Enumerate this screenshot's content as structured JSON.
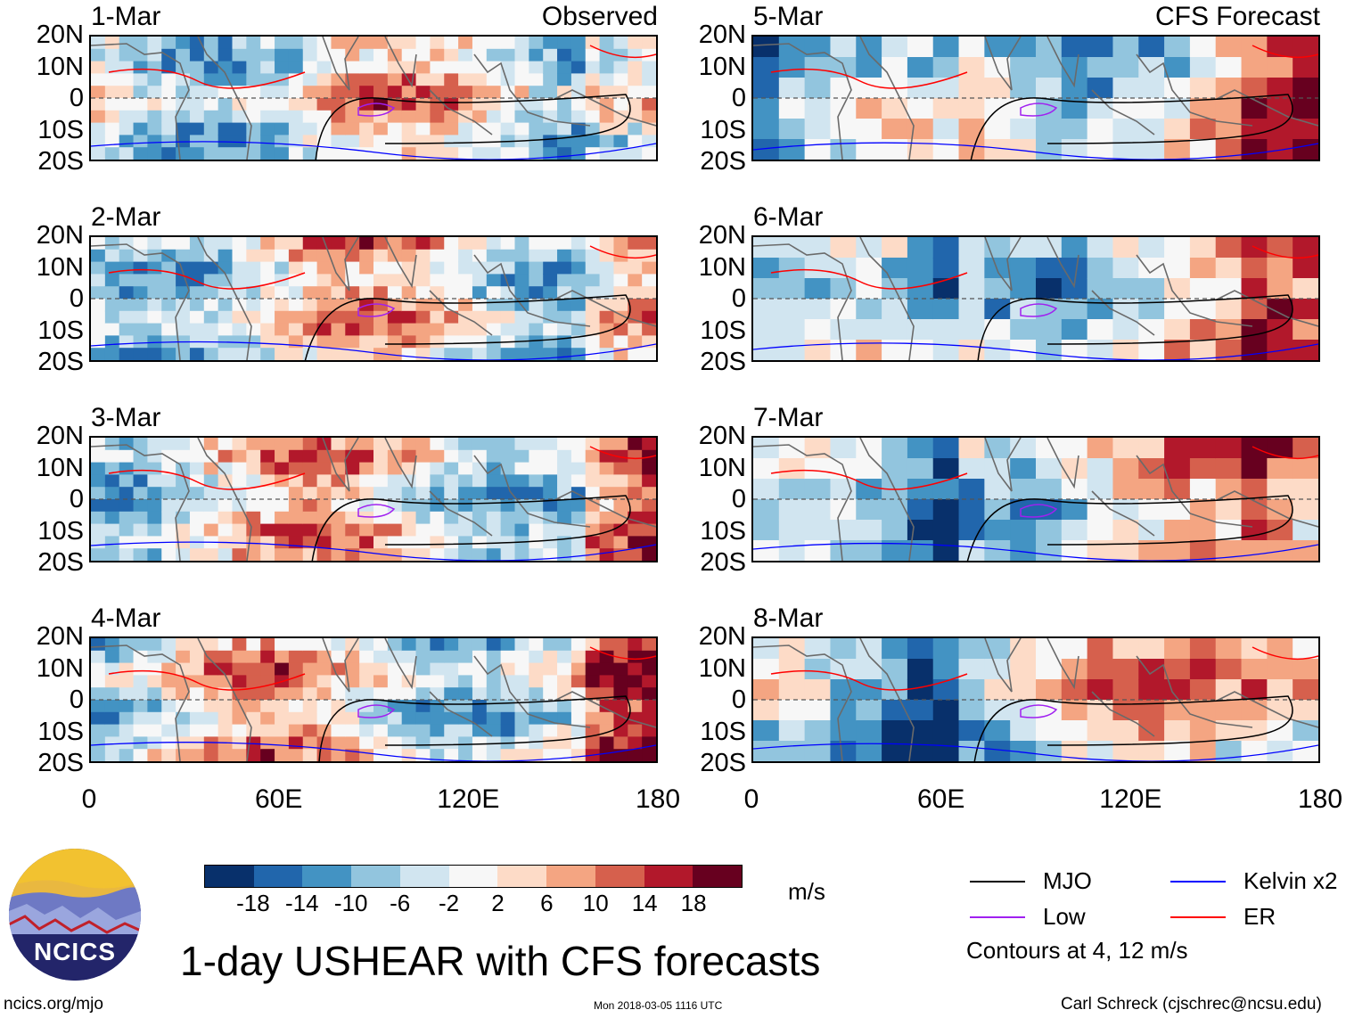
{
  "panels": [
    {
      "date": "1-Mar",
      "tag": "Observed",
      "side": "left",
      "row": 0
    },
    {
      "date": "2-Mar",
      "tag": "",
      "side": "left",
      "row": 1
    },
    {
      "date": "3-Mar",
      "tag": "",
      "side": "left",
      "row": 2
    },
    {
      "date": "4-Mar",
      "tag": "",
      "side": "left",
      "row": 3
    },
    {
      "date": "5-Mar",
      "tag": "CFS Forecast",
      "side": "right",
      "row": 0
    },
    {
      "date": "6-Mar",
      "tag": "",
      "side": "right",
      "row": 1
    },
    {
      "date": "7-Mar",
      "tag": "",
      "side": "right",
      "row": 2
    },
    {
      "date": "8-Mar",
      "tag": "",
      "side": "right",
      "row": 3
    }
  ],
  "y_labels": [
    "20N",
    "10N",
    "0",
    "10S",
    "20S"
  ],
  "x_labels": [
    "0",
    "60E",
    "120E",
    "180"
  ],
  "colorbar": {
    "colors": [
      "#08306b",
      "#2166ac",
      "#4393c3",
      "#92c5de",
      "#d1e5f0",
      "#f7f7f7",
      "#fddbc7",
      "#f4a582",
      "#d6604d",
      "#b2182b",
      "#67001f"
    ],
    "ticks": [
      "-18",
      "-14",
      "-10",
      "-6",
      "-2",
      "2",
      "6",
      "10",
      "14",
      "18"
    ],
    "units": "m/s"
  },
  "legend": {
    "items": [
      {
        "label": "MJO",
        "color": "#000000"
      },
      {
        "label": "Kelvin x2",
        "color": "#0000ff"
      },
      {
        "label": "Low",
        "color": "#a020f0"
      },
      {
        "label": "ER",
        "color": "#ff0000"
      }
    ],
    "note": "Contours at 4, 12 m/s"
  },
  "title": "1-day USHEAR with CFS forecasts",
  "logo_text": "NCICS",
  "footer": {
    "url": "ncics.org/mjo",
    "timestamp": "Mon 2018-03-05 1116 UTC",
    "credit": "Carl Schreck (cjschrec@ncsu.edu)"
  }
}
